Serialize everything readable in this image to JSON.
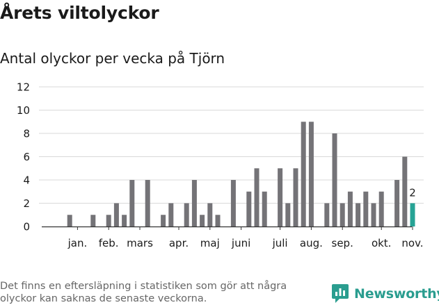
{
  "header": {
    "title": "Årets viltolyckor",
    "subtitle": "Antal olyckor per vecka på Tjörn"
  },
  "footer": {
    "note": "Det finns en eftersläpning i statistiken som gör att några olyckor kan saknas de senaste veckorna.",
    "brand": "Newsworthy",
    "brand_color": "#2a9d8f"
  },
  "chart_data": {
    "type": "bar",
    "title": "Antal olyckor per vecka på Tjörn",
    "xlabel": "",
    "ylabel": "",
    "ylim": [
      0,
      12
    ],
    "yticks": [
      0,
      2,
      4,
      6,
      8,
      10,
      12
    ],
    "grid": true,
    "colors": {
      "bar": "#747377",
      "highlight": "#27a395",
      "grid": "#d9d9d9",
      "axis": "#333333"
    },
    "weeks": [
      1,
      2,
      3,
      4,
      5,
      6,
      7,
      8,
      9,
      10,
      11,
      12,
      13,
      14,
      15,
      16,
      17,
      18,
      19,
      20,
      21,
      22,
      23,
      24,
      25,
      26,
      27,
      28,
      29,
      30,
      31,
      32,
      33,
      34,
      35,
      36,
      37,
      38,
      39,
      40,
      41,
      42,
      43,
      44,
      45,
      46,
      47
    ],
    "values": [
      0,
      1,
      0,
      0,
      1,
      0,
      1,
      2,
      1,
      4,
      0,
      4,
      0,
      1,
      2,
      0,
      2,
      4,
      1,
      2,
      1,
      0,
      4,
      0,
      3,
      5,
      3,
      0,
      5,
      2,
      5,
      9,
      9,
      0,
      2,
      8,
      2,
      3,
      2,
      3,
      2,
      3,
      0,
      4,
      6,
      2,
      0
    ],
    "highlight_week": 46,
    "data_labels": [
      {
        "week": 46,
        "text": "2"
      }
    ],
    "month_labels": [
      {
        "label": "jan.",
        "week": 3
      },
      {
        "label": "feb.",
        "week": 7
      },
      {
        "label": "mars",
        "week": 11
      },
      {
        "label": "apr.",
        "week": 16
      },
      {
        "label": "maj",
        "week": 20
      },
      {
        "label": "juni",
        "week": 24
      },
      {
        "label": "juli",
        "week": 29
      },
      {
        "label": "aug.",
        "week": 33
      },
      {
        "label": "sep.",
        "week": 37
      },
      {
        "label": "okt.",
        "week": 42
      },
      {
        "label": "nov.",
        "week": 46
      }
    ]
  }
}
